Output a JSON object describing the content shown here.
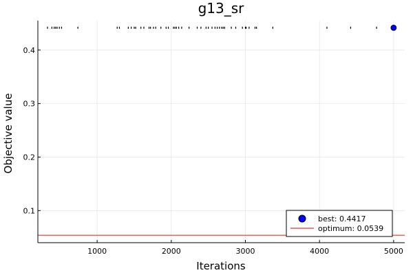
{
  "chart_data": {
    "type": "scatter",
    "title": "g13_sr",
    "xlabel": "Iterations",
    "ylabel": "Objective value",
    "xlim": [
      200,
      5150
    ],
    "ylim": [
      0.04,
      0.455
    ],
    "xticks": [
      1000,
      2000,
      3000,
      4000,
      5000
    ],
    "yticks": [
      0.1,
      0.2,
      0.3,
      0.4
    ],
    "grid": true,
    "legend_position": "bottom-right",
    "colors": {
      "best": "#0000ff",
      "optimum": "#e8322f",
      "marks": "#000000"
    },
    "trace": {
      "name": "",
      "y": 0.4417,
      "x": [
        330,
        390,
        420,
        440,
        460,
        490,
        520,
        740,
        1270,
        1300,
        1420,
        1460,
        1500,
        1520,
        1590,
        1630,
        1700,
        1720,
        1760,
        1790,
        1860,
        1930,
        1960,
        2030,
        2050,
        2070,
        2100,
        2140,
        2240,
        2350,
        2400,
        2470,
        2500,
        2550,
        2590,
        2620,
        2650,
        2680,
        2700,
        2720,
        2810,
        2870,
        2960,
        3000,
        3010,
        3050,
        3130,
        3150,
        3370,
        4100,
        4420,
        4770
      ]
    },
    "best": {
      "label": "best: 0.4417",
      "x": 5000,
      "y": 0.4417
    },
    "optimum": {
      "label": "optimum: 0.0539",
      "y": 0.0539
    }
  }
}
